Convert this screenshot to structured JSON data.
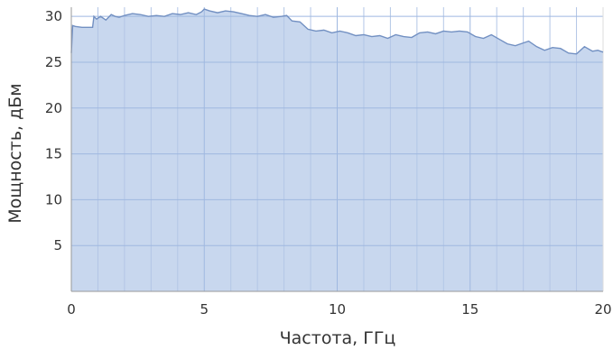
{
  "chart_data": {
    "type": "area",
    "title": "",
    "xlabel": "Частота, ГГц",
    "ylabel": "Мощность, дБм",
    "xlim": [
      0,
      20
    ],
    "ylim": [
      0,
      31
    ],
    "x_ticks": [
      0,
      5,
      10,
      15,
      20
    ],
    "y_ticks": [
      5,
      10,
      15,
      20,
      25,
      30
    ],
    "grid": true,
    "legend": "none",
    "colors": {
      "fill": "#c8d7ee",
      "line": "#7290c2",
      "grid_major": "#9fb8e0",
      "grid_minor": "#b3c6e6"
    },
    "series": [
      {
        "x": [
          0,
          0.05,
          0.15,
          0.4,
          0.6,
          0.8,
          0.85,
          0.95,
          1.1,
          1.3,
          1.5,
          1.65,
          1.8,
          2.0,
          2.3,
          2.6,
          2.9,
          3.2,
          3.5,
          3.8,
          4.1,
          4.4,
          4.7,
          4.9,
          5.0,
          5.2,
          5.5,
          5.8,
          6.1,
          6.4,
          6.7,
          7.0,
          7.3,
          7.6,
          7.9,
          8.1,
          8.3,
          8.6,
          8.9,
          9.2,
          9.5,
          9.8,
          10.1,
          10.4,
          10.7,
          11.0,
          11.3,
          11.6,
          11.9,
          12.2,
          12.5,
          12.8,
          13.1,
          13.4,
          13.7,
          14.0,
          14.3,
          14.6,
          14.9,
          15.2,
          15.5,
          15.8,
          16.1,
          16.4,
          16.7,
          16.9,
          17.2,
          17.5,
          17.8,
          18.1,
          18.4,
          18.7,
          19.0,
          19.3,
          19.6,
          19.8,
          20.0
        ],
        "values": [
          26.0,
          29.0,
          28.9,
          28.8,
          28.8,
          28.8,
          30.0,
          29.7,
          30.0,
          29.6,
          30.2,
          30.0,
          29.9,
          30.1,
          30.3,
          30.2,
          30.0,
          30.1,
          30.0,
          30.3,
          30.2,
          30.4,
          30.2,
          30.5,
          30.8,
          30.6,
          30.4,
          30.6,
          30.5,
          30.3,
          30.1,
          30.0,
          30.2,
          29.9,
          30.0,
          30.1,
          29.5,
          29.4,
          28.6,
          28.4,
          28.5,
          28.2,
          28.4,
          28.2,
          27.9,
          28.0,
          27.8,
          27.9,
          27.6,
          28.0,
          27.8,
          27.7,
          28.2,
          28.3,
          28.1,
          28.4,
          28.3,
          28.4,
          28.3,
          27.8,
          27.6,
          28.0,
          27.5,
          27.0,
          26.8,
          27.0,
          27.3,
          26.7,
          26.3,
          26.6,
          26.5,
          26.0,
          25.9,
          26.7,
          26.2,
          26.3,
          26.1
        ]
      }
    ]
  }
}
